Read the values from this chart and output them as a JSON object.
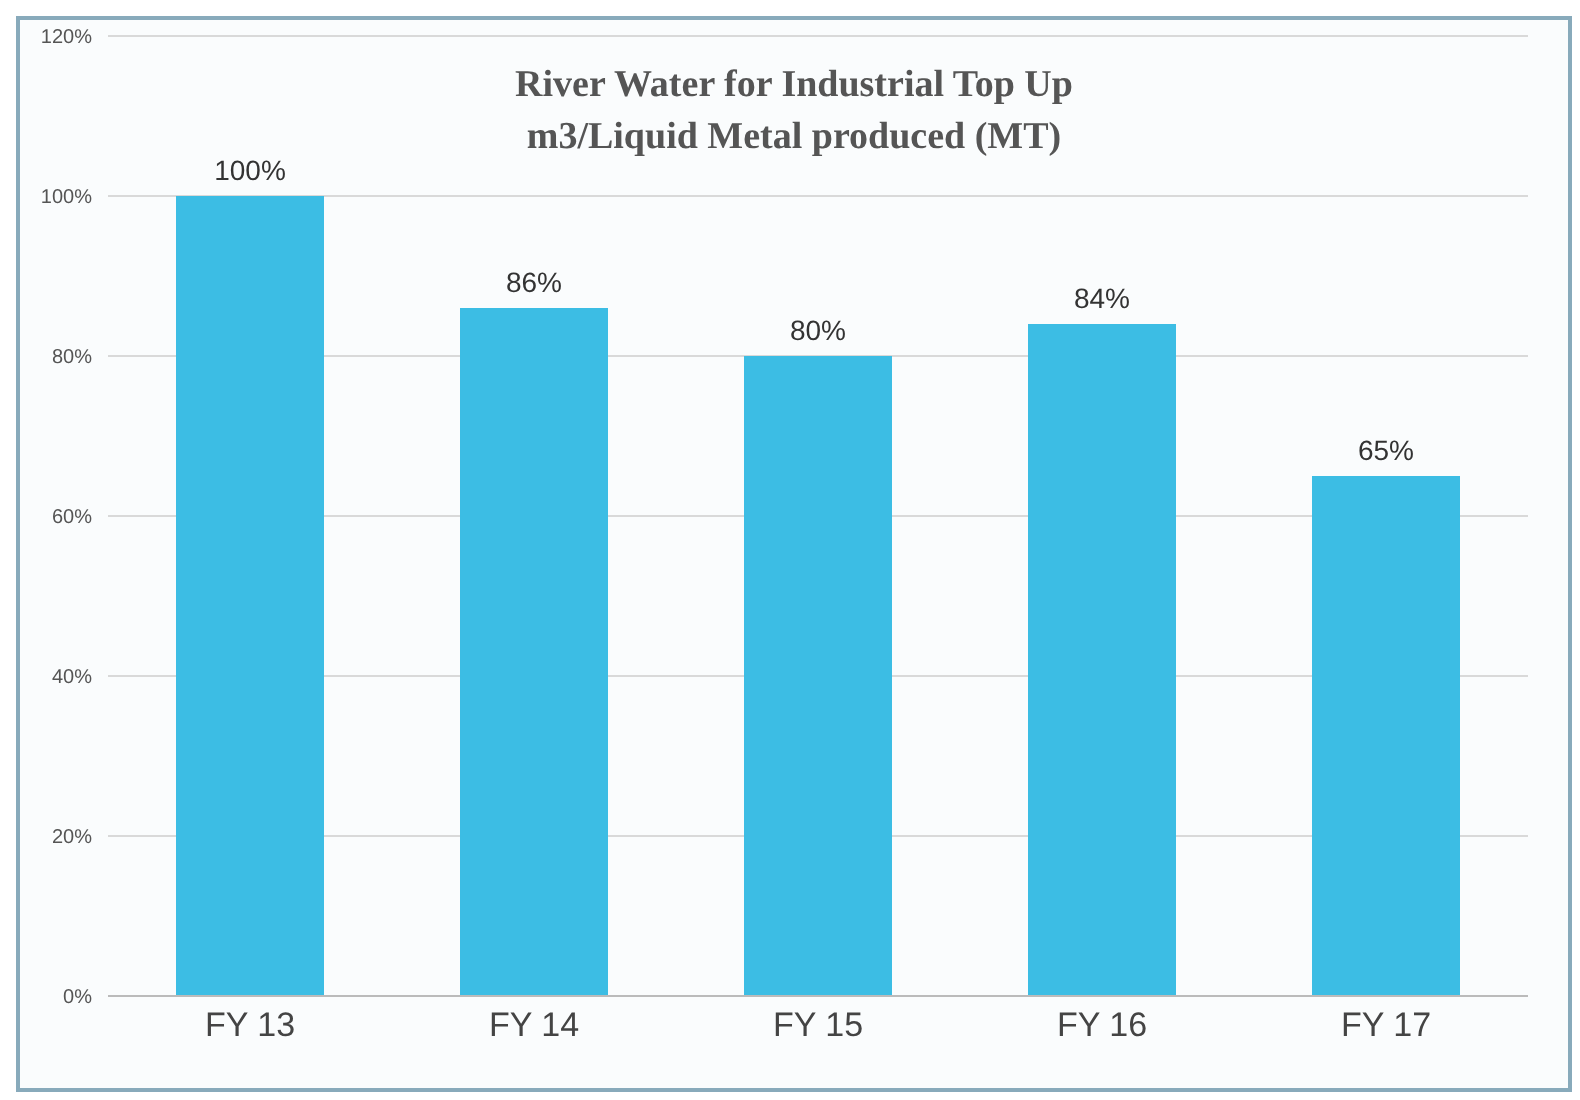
{
  "chart_data": {
    "type": "bar",
    "title": "River Water for Industrial Top Up\nm3/Liquid Metal produced (MT)",
    "categories": [
      "FY 13",
      "FY 14",
      "FY 15",
      "FY 16",
      "FY 17"
    ],
    "values": [
      100,
      86,
      80,
      84,
      65
    ],
    "value_labels": [
      "100%",
      "86%",
      "80%",
      "84%",
      "65%"
    ],
    "color": "#3cbde4",
    "ylim": [
      0,
      120
    ],
    "yticks": [
      {
        "value": 0,
        "label": "0%"
      },
      {
        "value": 20,
        "label": "20%"
      },
      {
        "value": 40,
        "label": "40%"
      },
      {
        "value": 60,
        "label": "60%"
      },
      {
        "value": 80,
        "label": "80%"
      },
      {
        "value": 100,
        "label": "100%"
      },
      {
        "value": 120,
        "label": "120%"
      }
    ],
    "grid": "y"
  }
}
